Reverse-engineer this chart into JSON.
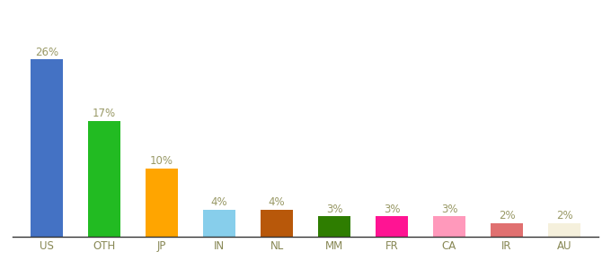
{
  "categories": [
    "US",
    "OTH",
    "JP",
    "IN",
    "NL",
    "MM",
    "FR",
    "CA",
    "IR",
    "AU"
  ],
  "values": [
    26,
    17,
    10,
    4,
    4,
    3,
    3,
    3,
    2,
    2
  ],
  "labels": [
    "26%",
    "17%",
    "10%",
    "4%",
    "4%",
    "3%",
    "3%",
    "3%",
    "2%",
    "2%"
  ],
  "colors": [
    "#4472C4",
    "#22BB22",
    "#FFA500",
    "#87CEEB",
    "#B8580A",
    "#2E7D00",
    "#FF1493",
    "#FF99BB",
    "#E07070",
    "#F5F0DC"
  ],
  "title": "",
  "ylim": [
    0,
    30
  ],
  "background_color": "#ffffff",
  "label_color": "#999966",
  "label_fontsize": 8.5,
  "xlabel_fontsize": 8.5,
  "bar_width": 0.55
}
